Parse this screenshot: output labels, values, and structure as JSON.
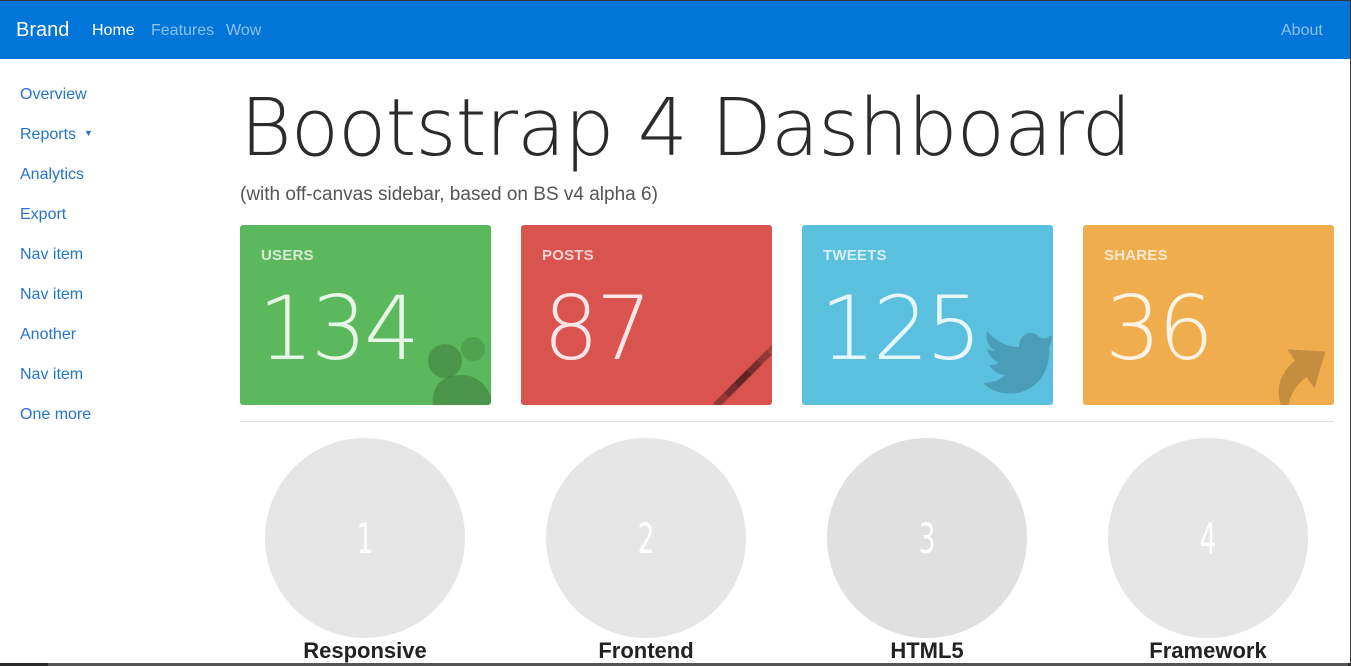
{
  "navbar": {
    "brand": "Brand",
    "links": [
      "Home",
      "Features",
      "Wow"
    ],
    "right_link": "About",
    "color": "#0275d8"
  },
  "sidebar": {
    "items": [
      {
        "label": "Overview"
      },
      {
        "label": "Reports",
        "has_dropdown": true
      },
      {
        "label": "Analytics"
      },
      {
        "label": "Export"
      },
      {
        "label": "Nav item"
      },
      {
        "label": "Nav item"
      },
      {
        "label": "Another"
      },
      {
        "label": "Nav item"
      },
      {
        "label": "One more"
      }
    ]
  },
  "header": {
    "title": "Bootstrap 4 Dashboard",
    "subtitle": "(with off-canvas sidebar, based on BS v4 alpha 6)"
  },
  "cards": [
    {
      "title": "USERS",
      "value": "134",
      "color": "#5cb85c",
      "icon": "user-icon"
    },
    {
      "title": "POSTS",
      "value": "87",
      "color": "#d9534f",
      "icon": "list-icon"
    },
    {
      "title": "TWEETS",
      "value": "125",
      "color": "#5bc0de",
      "icon": "twitter-icon"
    },
    {
      "title": "SHARES",
      "value": "36",
      "color": "#f0ad4e",
      "icon": "share-icon"
    }
  ],
  "features": [
    {
      "number": "1",
      "label": "Responsive"
    },
    {
      "number": "2",
      "label": "Frontend"
    },
    {
      "number": "3",
      "label": "HTML5"
    },
    {
      "number": "4",
      "label": "Framework"
    }
  ]
}
